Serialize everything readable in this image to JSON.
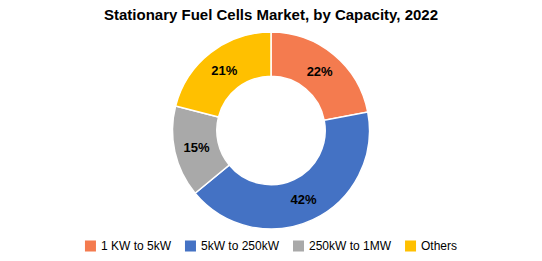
{
  "chart_data": {
    "type": "donut",
    "title": "Stationary Fuel Cells Market, by Capacity, 2022",
    "categories": [
      "1 KW to 5kW",
      "5kW to 250kW",
      "250kW to 1MW",
      "Others"
    ],
    "values": [
      22,
      42,
      15,
      21
    ],
    "value_labels": [
      "22%",
      "42%",
      "15%",
      "21%"
    ],
    "colors": [
      "#F47B4F",
      "#4472C4",
      "#A9A9A9",
      "#FFC000"
    ],
    "data_labels": true,
    "legend": "bottom"
  }
}
